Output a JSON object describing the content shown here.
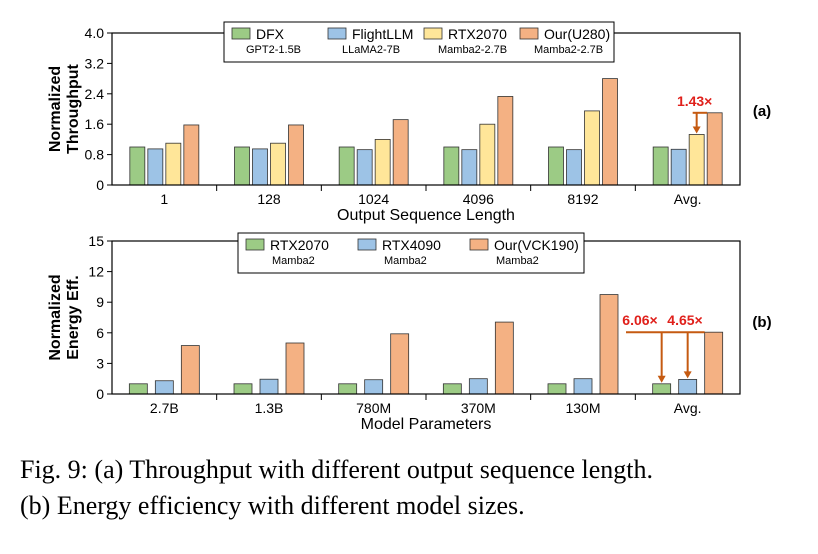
{
  "colors": {
    "green": "#9CCB85",
    "blue": "#9DC3E6",
    "yellow": "#FFE699",
    "orange": "#F4B183",
    "annotation": "#E0201B",
    "arrow": "#C55A11"
  },
  "chart_data": [
    {
      "type": "bar",
      "panel_tag": "(a)",
      "ylabel": [
        "Normalized",
        "Throughput"
      ],
      "xlabel": "Output Sequence Length",
      "ylim": [
        0,
        4.0
      ],
      "yticks": [
        "0",
        "0.8",
        "1.6",
        "2.4",
        "3.2",
        "4.0"
      ],
      "categories": [
        "1",
        "128",
        "1024",
        "4096",
        "8192",
        "Avg."
      ],
      "legend_placement": "top-center",
      "series": [
        {
          "name": "DFX",
          "sub": "GPT2-1.5B",
          "color": "#9CCB85",
          "values": [
            1.0,
            1.0,
            1.0,
            1.0,
            1.0,
            1.0
          ]
        },
        {
          "name": "FlightLLM",
          "sub": "LLaMA2-7B",
          "color": "#9DC3E6",
          "values": [
            0.95,
            0.95,
            0.93,
            0.93,
            0.93,
            0.94
          ]
        },
        {
          "name": "RTX2070",
          "sub": "Mamba2-2.7B",
          "color": "#FFE699",
          "values": [
            1.1,
            1.1,
            1.2,
            1.6,
            1.95,
            1.33
          ]
        },
        {
          "name": "Our(U280)",
          "sub": "Mamba2-2.7B",
          "color": "#F4B183",
          "values": [
            1.58,
            1.58,
            1.72,
            2.33,
            2.8,
            1.9
          ]
        }
      ],
      "annotations": [
        "1.43×"
      ]
    },
    {
      "type": "bar",
      "panel_tag": "(b)",
      "ylabel": [
        "Normalized",
        "Energy Eff."
      ],
      "xlabel": "Model Parameters",
      "ylim": [
        0,
        15
      ],
      "yticks": [
        "0",
        "3",
        "6",
        "9",
        "12",
        "15"
      ],
      "categories": [
        "2.7B",
        "1.3B",
        "780M",
        "370M",
        "130M",
        "Avg."
      ],
      "legend_placement": "top-center",
      "series": [
        {
          "name": "RTX2070",
          "sub": "Mamba2",
          "color": "#9CCB85",
          "values": [
            1.0,
            1.0,
            1.0,
            1.0,
            1.0,
            1.0
          ]
        },
        {
          "name": "RTX4090",
          "sub": "Mamba2",
          "color": "#9DC3E6",
          "values": [
            1.3,
            1.45,
            1.4,
            1.5,
            1.5,
            1.43
          ]
        },
        {
          "name": "Our(VCK190)",
          "sub": "Mamba2",
          "color": "#F4B183",
          "values": [
            4.75,
            5.0,
            5.9,
            7.05,
            9.75,
            6.06
          ]
        }
      ],
      "annotations": [
        "6.06×",
        "4.65×"
      ]
    }
  ],
  "caption": {
    "line1": "Fig. 9: (a) Throughput with different output sequence length.",
    "line2": "(b) Energy efficiency with different model sizes."
  }
}
